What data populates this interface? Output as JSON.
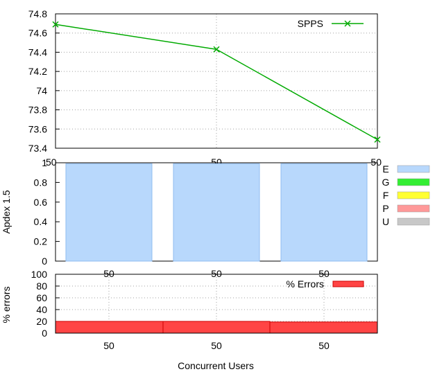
{
  "chart_data": [
    {
      "type": "line",
      "categories": [
        "50",
        "50",
        "50"
      ],
      "series": [
        {
          "name": "SPPS",
          "values": [
            74.69,
            74.43,
            73.49
          ],
          "color": "#00aa00",
          "marker": "x"
        }
      ],
      "ylim": [
        73.4,
        74.8
      ],
      "yticks": [
        "73.4",
        "73.6",
        "73.8",
        "74",
        "74.2",
        "74.4",
        "74.6",
        "74.8"
      ],
      "grid": true,
      "legend": "top-right"
    },
    {
      "type": "bar",
      "stacked": true,
      "categories": [
        "50",
        "50",
        "50"
      ],
      "ylabel": "Apdex 1.5",
      "ylim": [
        0,
        1
      ],
      "yticks": [
        "0",
        "0.2",
        "0.4",
        "0.6",
        "0.8",
        "1"
      ],
      "series": [
        {
          "name": "E",
          "values": [
            0.99,
            0.99,
            0.99
          ],
          "color": "#b8d8fc"
        },
        {
          "name": "G",
          "values": [
            0,
            0,
            0
          ],
          "color": "#33ee33"
        },
        {
          "name": "F",
          "values": [
            0,
            0,
            0
          ],
          "color": "#ffff33"
        },
        {
          "name": "P",
          "values": [
            0,
            0,
            0
          ],
          "color": "#ff9999"
        },
        {
          "name": "U",
          "values": [
            0,
            0,
            0
          ],
          "color": "#c8c8c8"
        }
      ],
      "legend": "right"
    },
    {
      "type": "bar",
      "categories": [
        "50",
        "50",
        "50"
      ],
      "ylabel": "% errors",
      "xlabel": "Concurrent Users",
      "ylim": [
        0,
        100
      ],
      "yticks": [
        "0",
        "20",
        "40",
        "60",
        "80",
        "100"
      ],
      "series": [
        {
          "name": "% Errors",
          "values": [
            20,
            20,
            19
          ],
          "color": "#ff4444"
        }
      ],
      "grid": true,
      "legend": "top-right"
    }
  ]
}
